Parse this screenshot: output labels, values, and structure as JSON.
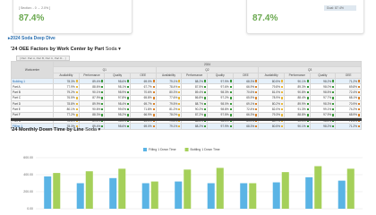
{
  "cards": [
    {
      "note": "[ Section: - 0 → 2.0% ]",
      "value": "87.4%"
    },
    {
      "goal": "Goal: 87.4%",
      "value": "87.4%"
    }
  ],
  "link": "▸2024 Soda Deep Dive",
  "table_title": "'24 OEE Factors by Work Center by Part",
  "table_filter": "Soda ▾",
  "filter_chip": "[ Part: Part A, Part B, Part C, Part D... ]",
  "table": {
    "corner": "Workcenter",
    "year": "2024",
    "groups": [
      "Q1",
      "Q2",
      "Q3"
    ],
    "measures": [
      "Availability",
      "Performance",
      "Quality",
      "OEE"
    ],
    "rows": [
      [
        "Building 1",
        "78.3%",
        "89.4%",
        "98.6%",
        "69.0%",
        "79.1%",
        "88.2%",
        "97.9%",
        "68.3%",
        "80.5%",
        "90.1%",
        "98.2%",
        "71.2%"
      ],
      [
        "Part A",
        "77.9%",
        "88.6%",
        "98.1%",
        "67.7%",
        "78.4%",
        "87.5%",
        "97.6%",
        "66.9%",
        "79.8%",
        "89.3%",
        "98.0%",
        "69.8%"
      ],
      [
        "Part B",
        "79.2%",
        "90.1%",
        "98.9%",
        "70.6%",
        "80.3%",
        "89.4%",
        "98.3%",
        "70.6%",
        "81.0%",
        "90.8%",
        "98.5%",
        "72.4%"
      ],
      [
        "Part C",
        "76.5%",
        "87.9%",
        "97.8%",
        "65.8%",
        "77.6%",
        "86.8%",
        "97.2%",
        "65.5%",
        "78.9%",
        "88.4%",
        "97.7%",
        "68.1%"
      ],
      [
        "Part D",
        "78.8%",
        "89.9%",
        "98.4%",
        "69.7%",
        "79.5%",
        "88.7%",
        "98.0%",
        "69.1%",
        "80.2%",
        "89.9%",
        "98.3%",
        "70.9%"
      ],
      [
        "Part E",
        "80.1%",
        "90.6%",
        "99.0%",
        "71.8%",
        "81.2%",
        "90.2%",
        "98.8%",
        "72.4%",
        "82.0%",
        "91.3%",
        "99.1%",
        "74.2%"
      ],
      [
        "Part F",
        "77.2%",
        "88.3%",
        "98.2%",
        "66.9%",
        "78.0%",
        "87.2%",
        "97.5%",
        "66.3%",
        "79.3%",
        "88.8%",
        "97.9%",
        "68.9%"
      ],
      [
        "Part G",
        "78.6%",
        "89.2%",
        "98.5%",
        "69.1%",
        "79.4%",
        "88.6%",
        "98.1%",
        "69.0%",
        "80.7%",
        "90.0%",
        "98.4%",
        "71.5%"
      ],
      [
        "Filling 1",
        "78.3%",
        "89.4%",
        "98.6%",
        "69.0%",
        "79.1%",
        "88.2%",
        "97.9%",
        "68.3%",
        "80.5%",
        "90.1%",
        "98.2%",
        "71.2%"
      ]
    ]
  },
  "chart_title": "'24 Monthly Down Time by Line",
  "chart_filter": "Soda ▾",
  "chart_data": {
    "type": "bar",
    "categories": [
      null,
      null,
      null,
      null,
      null,
      null,
      null,
      null,
      null,
      null
    ],
    "series": [
      {
        "name": "Filling 1 Down Time",
        "color": "#5ab4e5",
        "values": [
          380,
          300,
          360,
          300,
          320,
          300,
          300,
          310,
          370,
          330
        ]
      },
      {
        "name": "Bottling 1 Down Time",
        "color": "#a5d05a",
        "values": [
          420,
          440,
          470,
          320,
          460,
          480,
          300,
          430,
          500,
          470
        ]
      }
    ],
    "ylim": [
      0,
      600
    ],
    "yticks": [
      {
        "value": 0,
        "label": "0.00"
      },
      {
        "value": 200,
        "label": "200.00"
      },
      {
        "value": 400,
        "label": "400.00"
      },
      {
        "value": 600,
        "label": "600.00"
      }
    ],
    "grid": true
  }
}
